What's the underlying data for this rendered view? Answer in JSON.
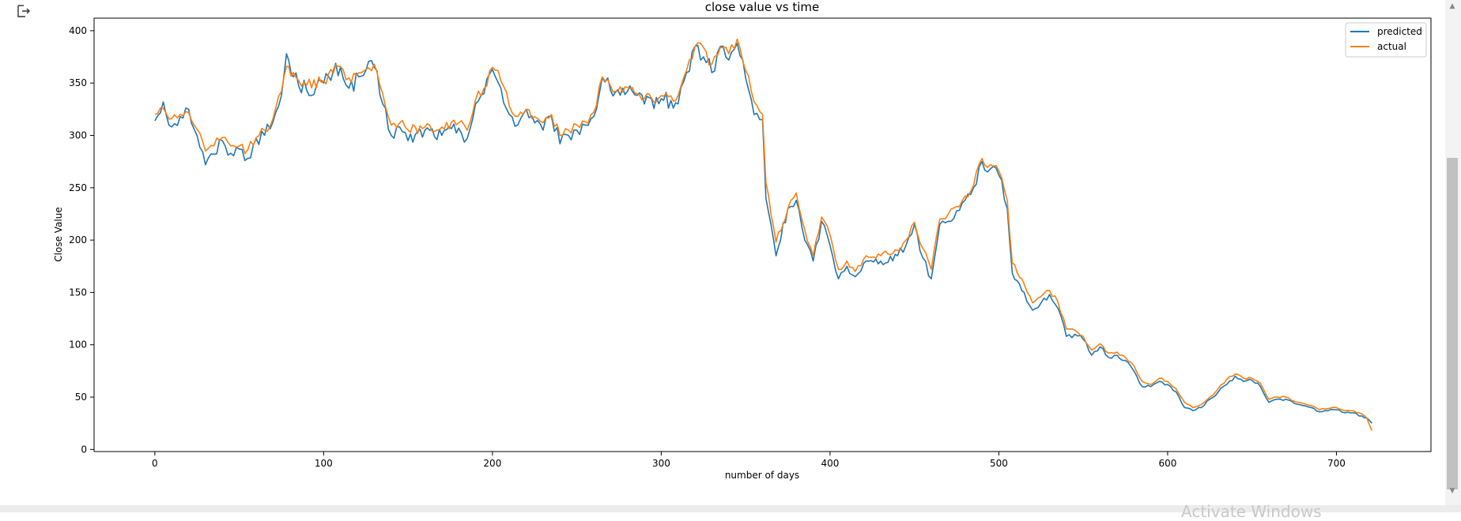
{
  "output_prompt_icon": "output-arrow-icon",
  "watermark": "Activate Windows",
  "chart_data": {
    "type": "line",
    "title": "close value vs time",
    "xlabel": "number of days",
    "ylabel": "Close Value",
    "xlim": [
      -36,
      756
    ],
    "ylim": [
      -2,
      412
    ],
    "xticks": [
      0,
      100,
      200,
      300,
      400,
      500,
      600,
      700
    ],
    "yticks": [
      0,
      50,
      100,
      150,
      200,
      250,
      300,
      350,
      400
    ],
    "legend_position": "top-right",
    "grid": false,
    "series": [
      {
        "name": "predicted",
        "color": "#1f77b4",
        "keypoints": [
          [
            0,
            314
          ],
          [
            5,
            332
          ],
          [
            10,
            308
          ],
          [
            15,
            318
          ],
          [
            20,
            325
          ],
          [
            25,
            300
          ],
          [
            30,
            272
          ],
          [
            35,
            282
          ],
          [
            40,
            295
          ],
          [
            45,
            283
          ],
          [
            50,
            287
          ],
          [
            55,
            278
          ],
          [
            60,
            297
          ],
          [
            65,
            300
          ],
          [
            70,
            313
          ],
          [
            75,
            338
          ],
          [
            78,
            378
          ],
          [
            82,
            356
          ],
          [
            90,
            343
          ],
          [
            100,
            350
          ],
          [
            110,
            365
          ],
          [
            115,
            345
          ],
          [
            125,
            362
          ],
          [
            130,
            365
          ],
          [
            135,
            330
          ],
          [
            140,
            300
          ],
          [
            145,
            308
          ],
          [
            150,
            295
          ],
          [
            160,
            305
          ],
          [
            170,
            300
          ],
          [
            180,
            307
          ],
          [
            185,
            297
          ],
          [
            190,
            330
          ],
          [
            195,
            340
          ],
          [
            200,
            363
          ],
          [
            205,
            345
          ],
          [
            210,
            320
          ],
          [
            215,
            310
          ],
          [
            220,
            325
          ],
          [
            225,
            312
          ],
          [
            230,
            305
          ],
          [
            235,
            318
          ],
          [
            240,
            292
          ],
          [
            245,
            300
          ],
          [
            250,
            305
          ],
          [
            255,
            310
          ],
          [
            260,
            318
          ],
          [
            265,
            355
          ],
          [
            270,
            343
          ],
          [
            280,
            342
          ],
          [
            290,
            330
          ],
          [
            300,
            335
          ],
          [
            310,
            330
          ],
          [
            315,
            360
          ],
          [
            320,
            385
          ],
          [
            325,
            375
          ],
          [
            330,
            360
          ],
          [
            335,
            385
          ],
          [
            340,
            372
          ],
          [
            345,
            388
          ],
          [
            350,
            355
          ],
          [
            355,
            320
          ],
          [
            360,
            315
          ],
          [
            362,
            240
          ],
          [
            365,
            215
          ],
          [
            368,
            185
          ],
          [
            375,
            230
          ],
          [
            380,
            238
          ],
          [
            385,
            200
          ],
          [
            390,
            180
          ],
          [
            395,
            218
          ],
          [
            400,
            195
          ],
          [
            405,
            163
          ],
          [
            410,
            175
          ],
          [
            415,
            165
          ],
          [
            420,
            178
          ],
          [
            430,
            180
          ],
          [
            440,
            185
          ],
          [
            445,
            195
          ],
          [
            450,
            215
          ],
          [
            455,
            183
          ],
          [
            460,
            163
          ],
          [
            465,
            215
          ],
          [
            470,
            218
          ],
          [
            475,
            228
          ],
          [
            480,
            238
          ],
          [
            485,
            250
          ],
          [
            490,
            275
          ],
          [
            495,
            268
          ],
          [
            500,
            262
          ],
          [
            505,
            230
          ],
          [
            508,
            168
          ],
          [
            515,
            150
          ],
          [
            520,
            133
          ],
          [
            525,
            140
          ],
          [
            530,
            148
          ],
          [
            535,
            135
          ],
          [
            540,
            108
          ],
          [
            545,
            110
          ],
          [
            550,
            105
          ],
          [
            555,
            90
          ],
          [
            560,
            98
          ],
          [
            565,
            88
          ],
          [
            570,
            90
          ],
          [
            575,
            85
          ],
          [
            580,
            75
          ],
          [
            585,
            60
          ],
          [
            590,
            60
          ],
          [
            595,
            65
          ],
          [
            600,
            62
          ],
          [
            605,
            55
          ],
          [
            610,
            40
          ],
          [
            615,
            37
          ],
          [
            620,
            40
          ],
          [
            625,
            48
          ],
          [
            630,
            55
          ],
          [
            635,
            62
          ],
          [
            640,
            70
          ],
          [
            645,
            65
          ],
          [
            650,
            66
          ],
          [
            655,
            60
          ],
          [
            660,
            45
          ],
          [
            665,
            48
          ],
          [
            670,
            48
          ],
          [
            675,
            44
          ],
          [
            680,
            42
          ],
          [
            685,
            40
          ],
          [
            690,
            36
          ],
          [
            695,
            37
          ],
          [
            700,
            38
          ],
          [
            705,
            35
          ],
          [
            710,
            35
          ],
          [
            715,
            32
          ],
          [
            718,
            30
          ],
          [
            721,
            25
          ]
        ]
      },
      {
        "name": "actual",
        "color": "#ff7f0e",
        "keypoints": [
          [
            0,
            320
          ],
          [
            5,
            326
          ],
          [
            10,
            316
          ],
          [
            15,
            320
          ],
          [
            20,
            322
          ],
          [
            25,
            306
          ],
          [
            30,
            285
          ],
          [
            35,
            290
          ],
          [
            40,
            298
          ],
          [
            45,
            290
          ],
          [
            50,
            290
          ],
          [
            55,
            286
          ],
          [
            60,
            298
          ],
          [
            65,
            305
          ],
          [
            70,
            316
          ],
          [
            75,
            342
          ],
          [
            78,
            366
          ],
          [
            82,
            360
          ],
          [
            90,
            348
          ],
          [
            100,
            352
          ],
          [
            110,
            366
          ],
          [
            115,
            355
          ],
          [
            125,
            363
          ],
          [
            130,
            368
          ],
          [
            135,
            340
          ],
          [
            140,
            310
          ],
          [
            145,
            312
          ],
          [
            150,
            305
          ],
          [
            160,
            308
          ],
          [
            170,
            308
          ],
          [
            180,
            312
          ],
          [
            185,
            305
          ],
          [
            190,
            334
          ],
          [
            195,
            345
          ],
          [
            200,
            365
          ],
          [
            205,
            352
          ],
          [
            210,
            328
          ],
          [
            215,
            318
          ],
          [
            220,
            325
          ],
          [
            225,
            318
          ],
          [
            230,
            312
          ],
          [
            235,
            320
          ],
          [
            240,
            300
          ],
          [
            245,
            305
          ],
          [
            250,
            310
          ],
          [
            255,
            313
          ],
          [
            260,
            322
          ],
          [
            265,
            356
          ],
          [
            270,
            347
          ],
          [
            280,
            346
          ],
          [
            290,
            335
          ],
          [
            300,
            338
          ],
          [
            310,
            338
          ],
          [
            315,
            362
          ],
          [
            320,
            385
          ],
          [
            325,
            384
          ],
          [
            330,
            368
          ],
          [
            335,
            384
          ],
          [
            340,
            378
          ],
          [
            345,
            392
          ],
          [
            350,
            362
          ],
          [
            355,
            332
          ],
          [
            360,
            320
          ],
          [
            362,
            255
          ],
          [
            365,
            225
          ],
          [
            368,
            198
          ],
          [
            375,
            230
          ],
          [
            380,
            245
          ],
          [
            385,
            210
          ],
          [
            390,
            185
          ],
          [
            395,
            222
          ],
          [
            400,
            205
          ],
          [
            405,
            172
          ],
          [
            410,
            180
          ],
          [
            415,
            170
          ],
          [
            420,
            182
          ],
          [
            430,
            185
          ],
          [
            440,
            190
          ],
          [
            445,
            200
          ],
          [
            450,
            217
          ],
          [
            455,
            192
          ],
          [
            460,
            172
          ],
          [
            465,
            220
          ],
          [
            470,
            225
          ],
          [
            475,
            232
          ],
          [
            480,
            242
          ],
          [
            485,
            252
          ],
          [
            490,
            278
          ],
          [
            495,
            272
          ],
          [
            500,
            266
          ],
          [
            505,
            238
          ],
          [
            508,
            178
          ],
          [
            515,
            158
          ],
          [
            520,
            140
          ],
          [
            525,
            146
          ],
          [
            530,
            152
          ],
          [
            535,
            141
          ],
          [
            540,
            115
          ],
          [
            545,
            114
          ],
          [
            550,
            108
          ],
          [
            555,
            95
          ],
          [
            560,
            101
          ],
          [
            565,
            92
          ],
          [
            570,
            93
          ],
          [
            575,
            88
          ],
          [
            580,
            80
          ],
          [
            585,
            65
          ],
          [
            590,
            62
          ],
          [
            595,
            68
          ],
          [
            600,
            65
          ],
          [
            605,
            58
          ],
          [
            610,
            45
          ],
          [
            615,
            40
          ],
          [
            620,
            43
          ],
          [
            625,
            50
          ],
          [
            630,
            58
          ],
          [
            635,
            67
          ],
          [
            640,
            72
          ],
          [
            645,
            68
          ],
          [
            650,
            68
          ],
          [
            655,
            63
          ],
          [
            660,
            48
          ],
          [
            665,
            50
          ],
          [
            670,
            50
          ],
          [
            675,
            46
          ],
          [
            680,
            44
          ],
          [
            685,
            42
          ],
          [
            690,
            38
          ],
          [
            695,
            39
          ],
          [
            700,
            40
          ],
          [
            705,
            37
          ],
          [
            710,
            37
          ],
          [
            715,
            34
          ],
          [
            718,
            30
          ],
          [
            721,
            18
          ]
        ]
      }
    ]
  }
}
